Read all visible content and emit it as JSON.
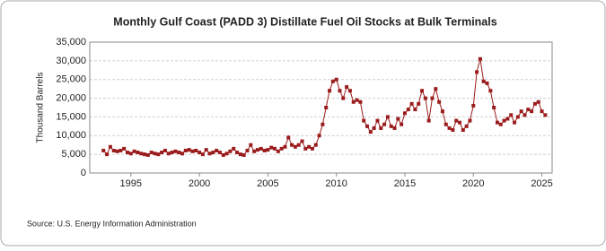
{
  "chart_data": {
    "type": "line",
    "title": "Monthly Gulf Coast (PADD 3) Distillate Fuel Oil Stocks at Bulk Terminals",
    "y_label": "Thousand Barrels",
    "source": "Source: U.S. Energy Information Administration",
    "x": [
      1993,
      1993.25,
      1993.5,
      1993.75,
      1994,
      1994.25,
      1994.5,
      1994.75,
      1995,
      1995.25,
      1995.5,
      1995.75,
      1996,
      1996.25,
      1996.5,
      1996.75,
      1997,
      1997.25,
      1997.5,
      1997.75,
      1998,
      1998.25,
      1998.5,
      1998.75,
      1999,
      1999.25,
      1999.5,
      1999.75,
      2000,
      2000.25,
      2000.5,
      2000.75,
      2001,
      2001.25,
      2001.5,
      2001.75,
      2002,
      2002.25,
      2002.5,
      2002.75,
      2003,
      2003.25,
      2003.5,
      2003.75,
      2004,
      2004.25,
      2004.5,
      2004.75,
      2005,
      2005.25,
      2005.5,
      2005.75,
      2006,
      2006.25,
      2006.5,
      2006.75,
      2007,
      2007.25,
      2007.5,
      2007.75,
      2008,
      2008.25,
      2008.5,
      2008.75,
      2009,
      2009.25,
      2009.5,
      2009.75,
      2010,
      2010.25,
      2010.5,
      2010.75,
      2011,
      2011.25,
      2011.5,
      2011.75,
      2012,
      2012.25,
      2012.5,
      2012.75,
      2013,
      2013.25,
      2013.5,
      2013.75,
      2014,
      2014.25,
      2014.5,
      2014.75,
      2015,
      2015.25,
      2015.5,
      2015.75,
      2016,
      2016.25,
      2016.5,
      2016.75,
      2017,
      2017.25,
      2017.5,
      2017.75,
      2018,
      2018.25,
      2018.5,
      2018.75,
      2019,
      2019.25,
      2019.5,
      2019.75,
      2020,
      2020.25,
      2020.5,
      2020.75,
      2021,
      2021.25,
      2021.5,
      2021.75,
      2022,
      2022.25,
      2022.5,
      2022.75,
      2023,
      2023.25,
      2023.5,
      2023.75,
      2024,
      2024.25,
      2024.5,
      2024.75,
      2025,
      2025.25
    ],
    "series": [
      {
        "name": "Distillate Fuel Oil Stocks",
        "color": "#9b1c1c",
        "values": [
          6000,
          5000,
          7000,
          6000,
          5800,
          6000,
          6500,
          5500,
          5200,
          5800,
          5500,
          5200,
          5000,
          4800,
          5500,
          5200,
          5000,
          5500,
          6000,
          5200,
          5500,
          5800,
          5500,
          5200,
          6000,
          6200,
          5800,
          6000,
          5500,
          5000,
          6200,
          5200,
          5500,
          6000,
          5500,
          4800,
          5200,
          5800,
          6500,
          5500,
          5000,
          4800,
          6000,
          7500,
          5800,
          6200,
          6500,
          6000,
          6200,
          6800,
          6500,
          5800,
          6500,
          7000,
          9500,
          7500,
          7000,
          7500,
          8500,
          6500,
          7000,
          6500,
          7500,
          10000,
          13000,
          17500,
          22000,
          24500,
          25000,
          22000,
          20000,
          23000,
          22000,
          19000,
          19500,
          19000,
          14000,
          12500,
          11000,
          12000,
          14000,
          12000,
          13000,
          15000,
          12500,
          12000,
          14500,
          13000,
          16000,
          17000,
          18500,
          17000,
          18500,
          22000,
          20000,
          14000,
          20000,
          22500,
          19000,
          16500,
          13000,
          12000,
          11500,
          14000,
          13500,
          11500,
          12500,
          14000,
          18000,
          27000,
          30500,
          24500,
          24000,
          22000,
          17500,
          13500,
          13000,
          14000,
          14500,
          15500,
          13500,
          15000,
          16500,
          15500,
          17000,
          16500,
          18500,
          19000,
          16500,
          15500
        ]
      }
    ],
    "xlim": [
      1992,
      2025.75
    ],
    "xticks": [
      1995,
      2000,
      2005,
      2010,
      2015,
      2020,
      2025
    ],
    "ylim": [
      0,
      35000
    ],
    "yticks": [
      0,
      {
        "value": 5000,
        "label": "5,000"
      },
      {
        "value": 10000,
        "label": "10,000"
      },
      {
        "value": 15000,
        "label": "15,000"
      },
      {
        "value": 20000,
        "label": "20,000"
      },
      {
        "value": 25000,
        "label": "25,000"
      },
      {
        "value": 30000,
        "label": "30,000"
      },
      {
        "value": 35000,
        "label": "35,000"
      }
    ],
    "grid": true
  }
}
